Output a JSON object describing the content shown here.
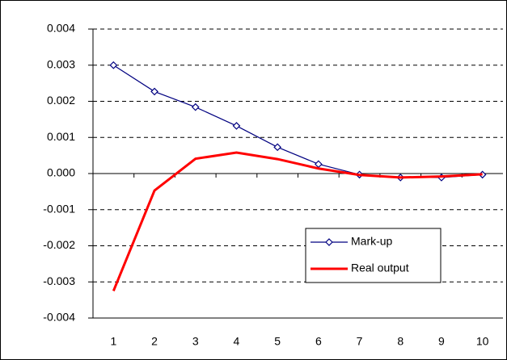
{
  "chart_data": {
    "type": "line",
    "categories": [
      "1",
      "2",
      "3",
      "4",
      "5",
      "6",
      "7",
      "8",
      "9",
      "10"
    ],
    "series": [
      {
        "name": "Mark-up",
        "color": "#000080",
        "marker": "diamond",
        "values": [
          0.003,
          0.00227,
          0.00184,
          0.00132,
          0.00073,
          0.00026,
          -3e-05,
          -0.00011,
          -0.00011,
          -3e-05
        ]
      },
      {
        "name": "Real output",
        "color": "#ff0000",
        "marker": "none",
        "values": [
          -0.00325,
          -0.00047,
          0.00041,
          0.00058,
          0.0004,
          0.00014,
          -4e-05,
          -0.00011,
          -8e-05,
          -2e-05
        ]
      }
    ],
    "ylim": [
      -0.004,
      0.004
    ],
    "yticks": [
      -0.004,
      -0.003,
      -0.002,
      -0.001,
      {
        "value": 0,
        "label": "0.000"
      },
      0.001,
      0.002,
      0.003,
      0.004
    ],
    "grid": true
  }
}
